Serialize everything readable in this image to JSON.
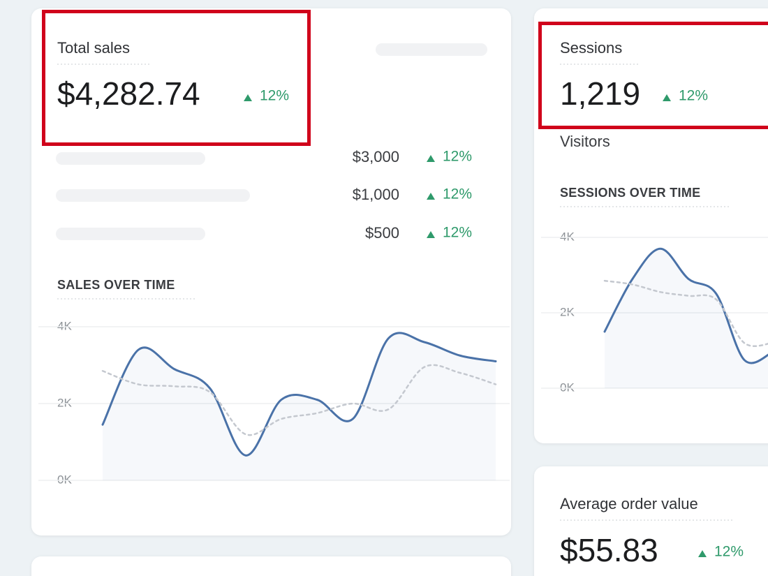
{
  "total_sales": {
    "title": "Total sales",
    "value": "$4,282.74",
    "change": "12%",
    "breakdown": [
      {
        "value": "$3,000",
        "change": "12%"
      },
      {
        "value": "$1,000",
        "change": "12%"
      },
      {
        "value": "$500",
        "change": "12%"
      }
    ]
  },
  "sessions": {
    "title": "Sessions",
    "value": "1,219",
    "change": "12%",
    "subtitle": "Visitors"
  },
  "average_order_value": {
    "title": "Average order value",
    "value": "$55.83",
    "change": "12%"
  },
  "chart_data": [
    {
      "type": "line",
      "title": "SALES OVER TIME",
      "categories": [
        null,
        null,
        null,
        null,
        null,
        null,
        null,
        null,
        null,
        null,
        null,
        null
      ],
      "series": [
        {
          "color": "#4a72a8",
          "line_style": "solid",
          "values": [
            1.45,
            3.4,
            2.9,
            2.4,
            0.65,
            2.1,
            2.1,
            1.6,
            3.7,
            3.6,
            3.25,
            3.1
          ]
        },
        {
          "color": "#c4c8cf",
          "line_style": "dashed",
          "values": [
            2.85,
            2.5,
            2.45,
            2.3,
            1.2,
            1.6,
            1.75,
            2.0,
            1.85,
            2.95,
            2.8,
            2.5
          ]
        }
      ],
      "ylim": [
        0,
        4
      ],
      "yticks": [
        {
          "value": 0,
          "label": "0K"
        },
        {
          "value": 2,
          "label": "2K"
        },
        {
          "value": 4,
          "label": "4K"
        }
      ],
      "grid": true
    },
    {
      "type": "line",
      "title": "SESSIONS OVER TIME",
      "categories": [
        null,
        null,
        null,
        null,
        null,
        null,
        null
      ],
      "series": [
        {
          "color": "#4a72a8",
          "line_style": "solid",
          "values": [
            1.5,
            2.9,
            3.7,
            2.9,
            2.5,
            0.75,
            0.95
          ]
        },
        {
          "color": "#c4c8cf",
          "line_style": "dashed",
          "values": [
            2.85,
            2.75,
            2.55,
            2.45,
            2.35,
            1.2,
            1.2
          ]
        }
      ],
      "ylim": [
        0,
        4
      ],
      "yticks": [
        {
          "value": 0,
          "label": "0K"
        },
        {
          "value": 2,
          "label": "2K"
        },
        {
          "value": 4,
          "label": "4K"
        }
      ],
      "grid": true
    }
  ]
}
